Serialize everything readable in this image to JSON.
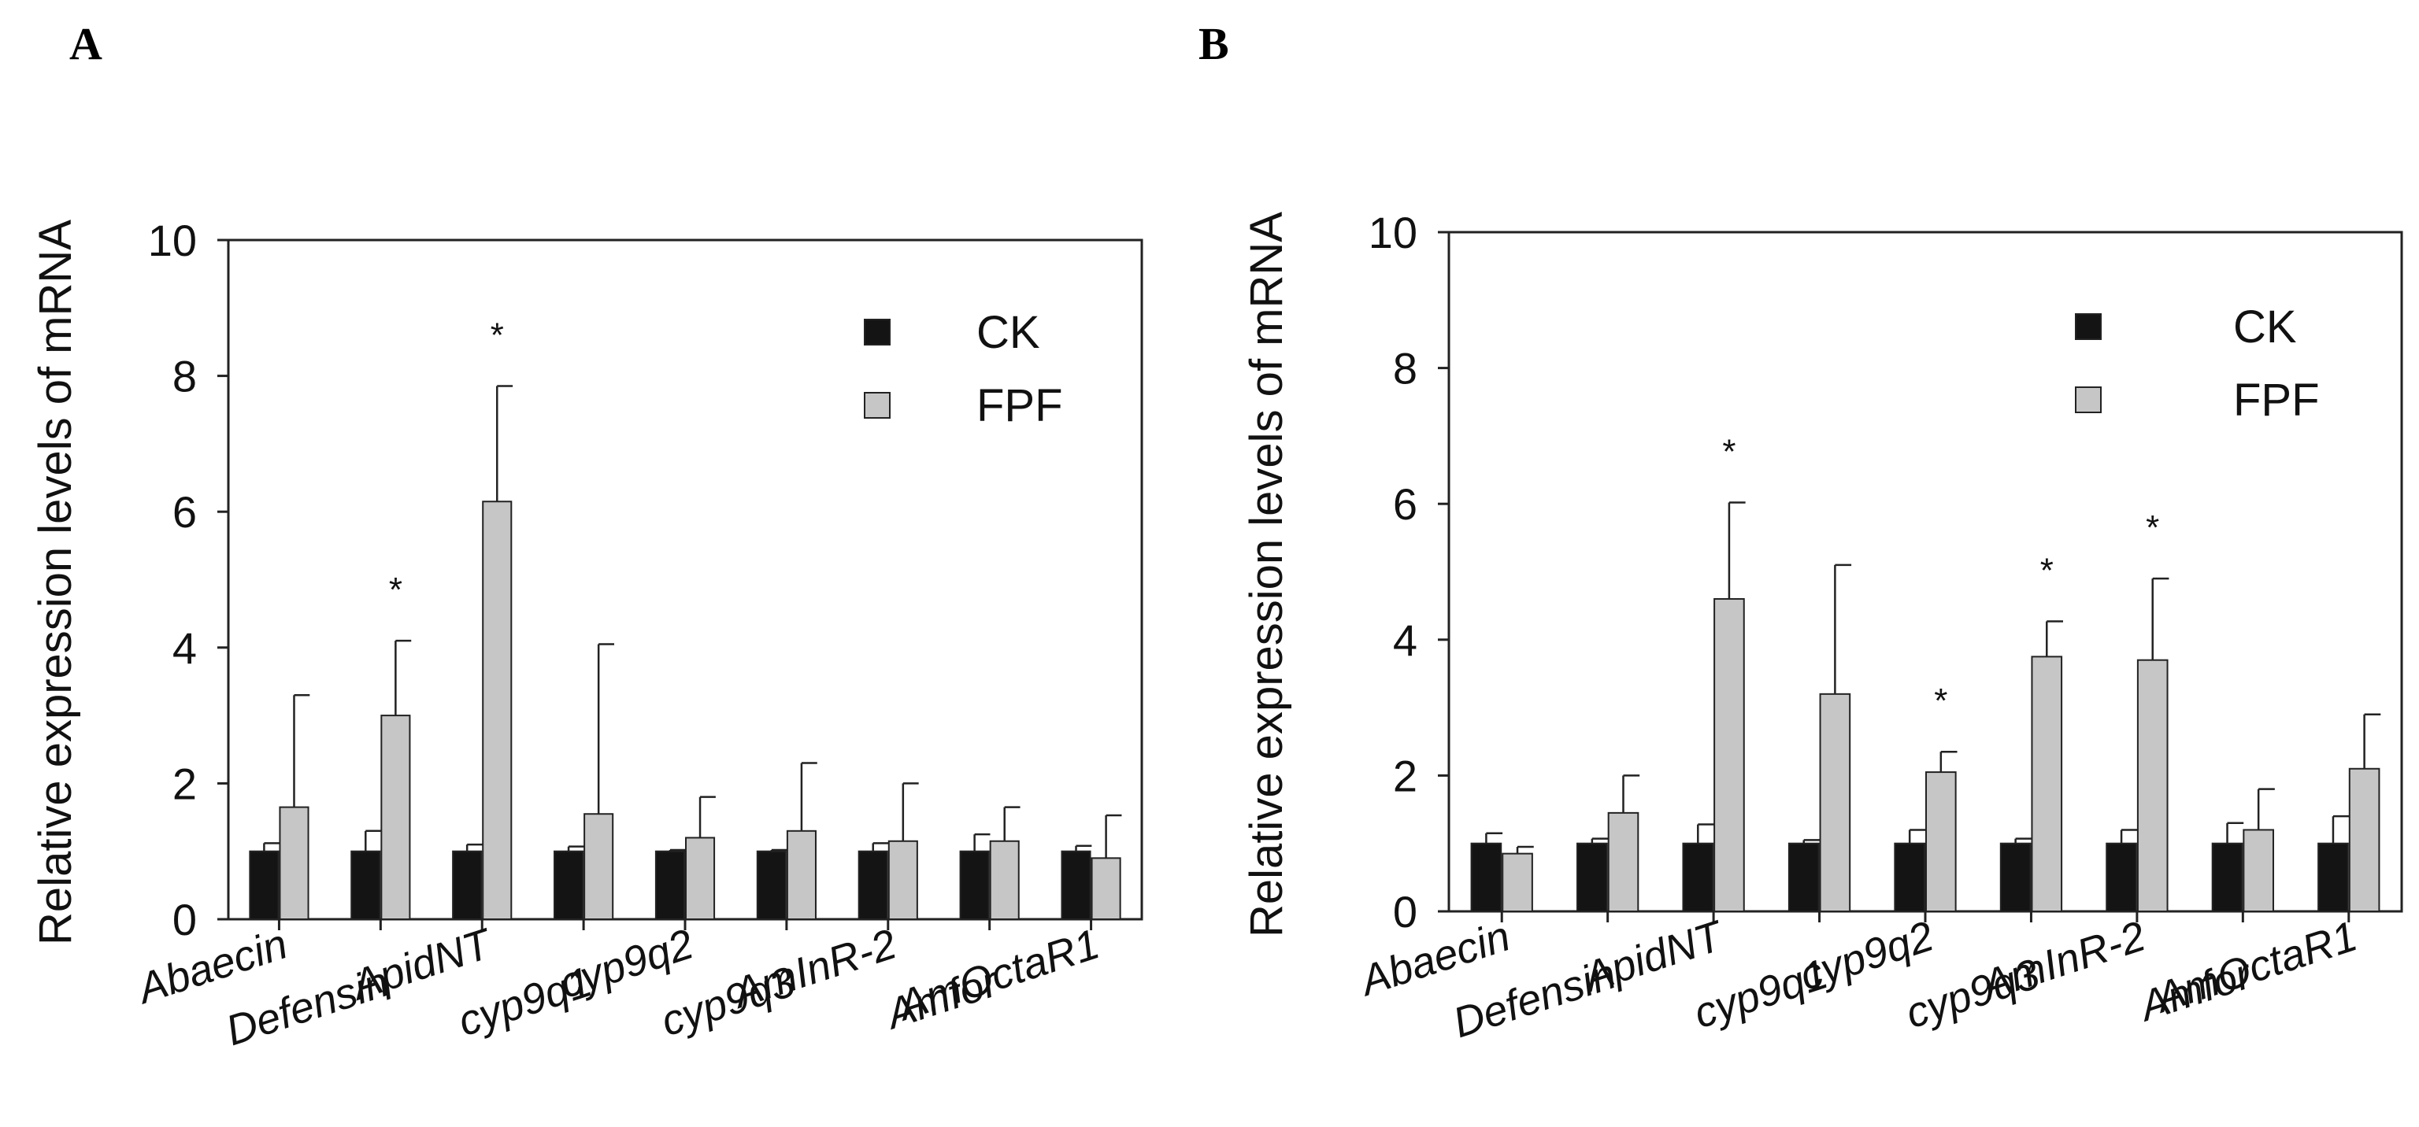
{
  "colors": {
    "ck": "#141414",
    "fpf": "#c6c6c6",
    "axis": "#222222"
  },
  "panels": [
    {
      "label": "A",
      "chart_data": {
        "type": "bar",
        "ylabel": "Relative expression levels of mRNA",
        "ylim": [
          0,
          10
        ],
        "yticks": [
          "0",
          "2",
          "4",
          "6",
          "8",
          "10"
        ],
        "categories": [
          "Abaecin",
          "Defensin",
          "ApidNT",
          "cyp9q1",
          "cyp9q2",
          "cyp9q3",
          "AmInR-2",
          "Amfor",
          "AmOctaR1"
        ],
        "legend": [
          "CK",
          "FPF"
        ],
        "series": [
          {
            "name": "CK",
            "values": [
              1.0,
              1.0,
              1.0,
              1.0,
              1.0,
              1.0,
              1.0,
              1.0,
              1.0
            ],
            "err": [
              0.12,
              0.3,
              0.1,
              0.07,
              0.02,
              0.02,
              0.12,
              0.25,
              0.08
            ]
          },
          {
            "name": "FPF",
            "values": [
              1.65,
              3.0,
              6.15,
              1.55,
              1.2,
              1.3,
              1.15,
              1.15,
              0.9
            ],
            "err": [
              1.65,
              1.1,
              1.7,
              2.5,
              0.6,
              1.0,
              0.85,
              0.5,
              0.63
            ]
          }
        ],
        "significance": [
          {
            "index": 1,
            "text": "*"
          },
          {
            "index": 2,
            "text": "*"
          }
        ]
      }
    },
    {
      "label": "B",
      "chart_data": {
        "type": "bar",
        "ylabel": "Relative expression levels of mRNA",
        "ylim": [
          0,
          10
        ],
        "yticks": [
          "0",
          "2",
          "4",
          "6",
          "8",
          "10"
        ],
        "categories": [
          "Abaecin",
          "Defensin",
          "ApidNT",
          "cyp9q1",
          "cyp9q2",
          "cyp9q3",
          "AmInR-2",
          "Amfor",
          "AmOctaR1"
        ],
        "legend": [
          "CK",
          "FPF"
        ],
        "series": [
          {
            "name": "CK",
            "values": [
              1.0,
              1.0,
              1.0,
              1.0,
              1.0,
              1.0,
              1.0,
              1.0,
              1.0
            ],
            "err": [
              0.15,
              0.07,
              0.28,
              0.05,
              0.2,
              0.07,
              0.2,
              0.3,
              0.4
            ]
          },
          {
            "name": "FPF",
            "values": [
              0.85,
              1.45,
              4.6,
              3.2,
              2.05,
              3.75,
              3.7,
              1.2,
              2.1
            ],
            "err": [
              0.1,
              0.55,
              1.42,
              1.9,
              0.3,
              0.52,
              1.2,
              0.6,
              0.8
            ]
          }
        ],
        "significance": [
          {
            "index": 2,
            "text": "*"
          },
          {
            "index": 4,
            "text": "*"
          },
          {
            "index": 5,
            "text": "*"
          },
          {
            "index": 6,
            "text": "*"
          }
        ]
      }
    }
  ]
}
